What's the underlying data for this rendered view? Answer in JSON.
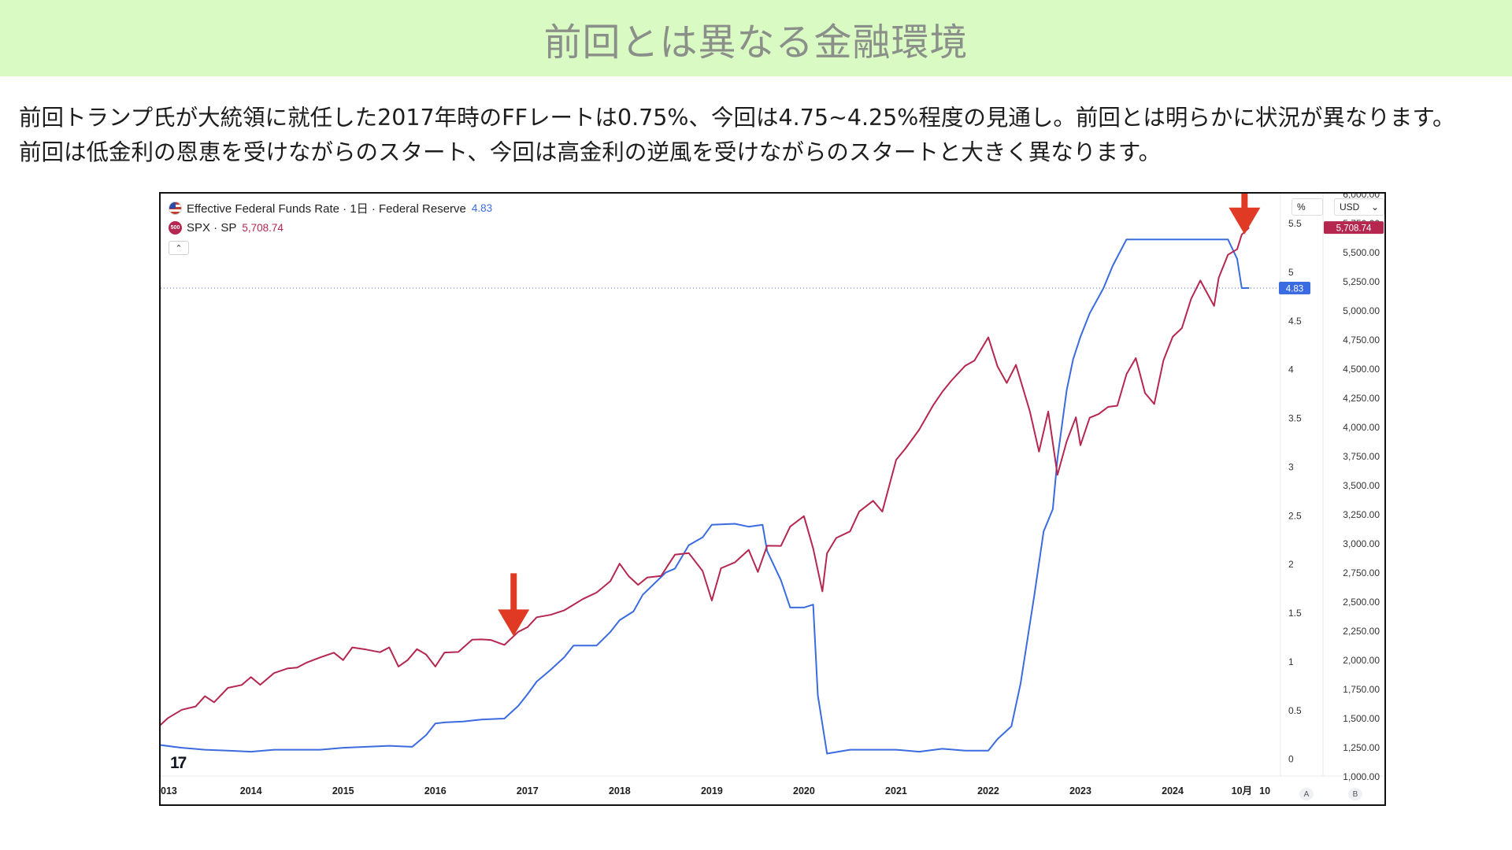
{
  "slide": {
    "title": "前回とは異なる金融環境",
    "body": [
      "前回トランプ氏が大統領に就任した2017年時のFFレートは0.75%、今回は4.75~4.25%程度の見通し。前回とは明らかに状況が異なります。",
      "前回は低金利の恩恵を受けながらのスタート、今回は高金利の逆風を受けながらのスタートと大きく異なります。"
    ]
  },
  "chart_panel": {
    "legend": {
      "fed_label": "Effective Federal Funds Rate · 1日 · Federal Reserve",
      "fed_value": "4.83",
      "spx_icon_text": "500",
      "spx_label": "SPX · SP",
      "spx_value": "5,708.74",
      "collapse_glyph": "⌃"
    },
    "pct_unit": "%",
    "usd_unit": "USD",
    "usd_dropdown_glyph": "⌄",
    "logo_text": "17",
    "auto_button": "A",
    "scale_button": "B",
    "colors": {
      "fed": "#3b6be0",
      "spx": "#b5274f",
      "arrow": "#e03a25",
      "grid": "#eef0f3"
    }
  },
  "chart_data": {
    "type": "line",
    "x_ticks": [
      "013",
      "2014",
      "2015",
      "2016",
      "2017",
      "2018",
      "2019",
      "2020",
      "2021",
      "2022",
      "2023",
      "2024",
      "10月",
      "10"
    ],
    "left_axis": {
      "ticks": [
        "0",
        "0.5",
        "1",
        "1.5",
        "2",
        "2.5",
        "3",
        "3.5",
        "4",
        "4.5",
        "5",
        "5.5"
      ],
      "range": [
        -0.18,
        5.8
      ],
      "unit": "%"
    },
    "right_axis": {
      "ticks": [
        "1,000.00",
        "1,250.00",
        "1,500.00",
        "1,750.00",
        "2,000.00",
        "2,250.00",
        "2,500.00",
        "2,750.00",
        "3,000.00",
        "3,250.00",
        "3,500.00",
        "3,750.00",
        "4,000.00",
        "4,250.00",
        "4,500.00",
        "4,750.00",
        "5,000.00",
        "5,250.00",
        "5,500.00",
        "5,750.00",
        "6,000.00"
      ],
      "range": [
        1000,
        6000
      ],
      "unit": "USD"
    },
    "series": [
      {
        "name": "Effective Federal Funds Rate",
        "axis": "left",
        "x": [
          2013.0,
          2013.25,
          2013.5,
          2013.75,
          2014.0,
          2014.25,
          2014.5,
          2014.75,
          2015.0,
          2015.25,
          2015.5,
          2015.75,
          2015.9,
          2016.0,
          2016.1,
          2016.3,
          2016.5,
          2016.75,
          2016.9,
          2017.0,
          2017.1,
          2017.25,
          2017.4,
          2017.5,
          2017.75,
          2017.9,
          2018.0,
          2018.15,
          2018.25,
          2018.5,
          2018.6,
          2018.75,
          2018.9,
          2019.0,
          2019.25,
          2019.4,
          2019.55,
          2019.6,
          2019.75,
          2019.85,
          2020.0,
          2020.1,
          2020.15,
          2020.25,
          2020.5,
          2020.75,
          2021.0,
          2021.25,
          2021.5,
          2021.75,
          2022.0,
          2022.1,
          2022.25,
          2022.35,
          2022.5,
          2022.6,
          2022.7,
          2022.75,
          2022.85,
          2022.92,
          2023.0,
          2023.1,
          2023.25,
          2023.35,
          2023.5,
          2023.6,
          2023.75,
          2024.0,
          2024.25,
          2024.5,
          2024.6,
          2024.7,
          2024.75,
          2024.83
        ],
        "values": [
          0.14,
          0.11,
          0.09,
          0.08,
          0.07,
          0.09,
          0.09,
          0.09,
          0.11,
          0.12,
          0.13,
          0.12,
          0.24,
          0.36,
          0.37,
          0.38,
          0.4,
          0.41,
          0.54,
          0.66,
          0.79,
          0.91,
          1.04,
          1.16,
          1.16,
          1.3,
          1.42,
          1.51,
          1.68,
          1.91,
          1.95,
          2.19,
          2.27,
          2.4,
          2.41,
          2.38,
          2.4,
          2.13,
          1.83,
          1.55,
          1.55,
          1.58,
          0.65,
          0.05,
          0.09,
          0.09,
          0.09,
          0.07,
          0.1,
          0.08,
          0.08,
          0.2,
          0.33,
          0.77,
          1.68,
          2.33,
          2.56,
          3.08,
          3.78,
          4.1,
          4.33,
          4.57,
          4.83,
          5.06,
          5.33,
          5.33,
          5.33,
          5.33,
          5.33,
          5.33,
          5.33,
          5.13,
          4.83,
          4.83
        ]
      },
      {
        "name": "SPX",
        "axis": "right",
        "x": [
          2013.0,
          2013.1,
          2013.25,
          2013.4,
          2013.5,
          2013.6,
          2013.75,
          2013.9,
          2014.0,
          2014.1,
          2014.25,
          2014.4,
          2014.5,
          2014.6,
          2014.75,
          2014.9,
          2015.0,
          2015.1,
          2015.25,
          2015.4,
          2015.5,
          2015.6,
          2015.7,
          2015.8,
          2015.9,
          2016.0,
          2016.1,
          2016.25,
          2016.4,
          2016.5,
          2016.6,
          2016.75,
          2016.9,
          2017.0,
          2017.1,
          2017.25,
          2017.4,
          2017.5,
          2017.6,
          2017.75,
          2017.9,
          2018.0,
          2018.1,
          2018.2,
          2018.3,
          2018.45,
          2018.6,
          2018.75,
          2018.9,
          2019.0,
          2019.1,
          2019.25,
          2019.4,
          2019.5,
          2019.6,
          2019.75,
          2019.85,
          2020.0,
          2020.1,
          2020.2,
          2020.25,
          2020.35,
          2020.5,
          2020.6,
          2020.75,
          2020.85,
          2021.0,
          2021.1,
          2021.25,
          2021.4,
          2021.5,
          2021.6,
          2021.75,
          2021.85,
          2022.0,
          2022.1,
          2022.2,
          2022.3,
          2022.45,
          2022.55,
          2022.65,
          2022.75,
          2022.85,
          2022.95,
          2023.0,
          2023.1,
          2023.2,
          2023.3,
          2023.4,
          2023.5,
          2023.6,
          2023.7,
          2023.8,
          2023.9,
          2024.0,
          2024.1,
          2024.2,
          2024.3,
          2024.45,
          2024.5,
          2024.6,
          2024.7,
          2024.75,
          2024.83
        ],
        "values": [
          1426,
          1498,
          1569,
          1597,
          1685,
          1633,
          1757,
          1782,
          1849,
          1783,
          1884,
          1924,
          1931,
          1972,
          2018,
          2059,
          1995,
          2104,
          2086,
          2063,
          2104,
          1940,
          1995,
          2089,
          2043,
          1940,
          2060,
          2065,
          2170,
          2173,
          2168,
          2126,
          2238,
          2278,
          2363,
          2384,
          2423,
          2470,
          2519,
          2575,
          2673,
          2823,
          2714,
          2641,
          2705,
          2718,
          2901,
          2914,
          2760,
          2507,
          2784,
          2834,
          2942,
          2752,
          2977,
          2976,
          3141,
          3231,
          2954,
          2585,
          2912,
          3044,
          3100,
          3271,
          3363,
          3270,
          3714,
          3811,
          3973,
          4181,
          4297,
          4395,
          4522,
          4567,
          4766,
          4516,
          4374,
          4530,
          4132,
          3785,
          4130,
          3585,
          3872,
          4080,
          3840,
          4076,
          4109,
          4169,
          4179,
          4450,
          4588,
          4288,
          4194,
          4568,
          4770,
          4845,
          5096,
          5254,
          5036,
          5278,
          5475,
          5522,
          5648,
          5708
        ]
      }
    ],
    "last_value_labels": {
      "fed": "4.83",
      "spx": "5,708.74"
    },
    "annotations": [
      {
        "type": "arrow",
        "x": 2016.85,
        "axis": "right",
        "tip": 2200
      },
      {
        "type": "arrow",
        "x": 2024.78,
        "axis": "right",
        "tip": 5650
      }
    ],
    "grid": true
  }
}
